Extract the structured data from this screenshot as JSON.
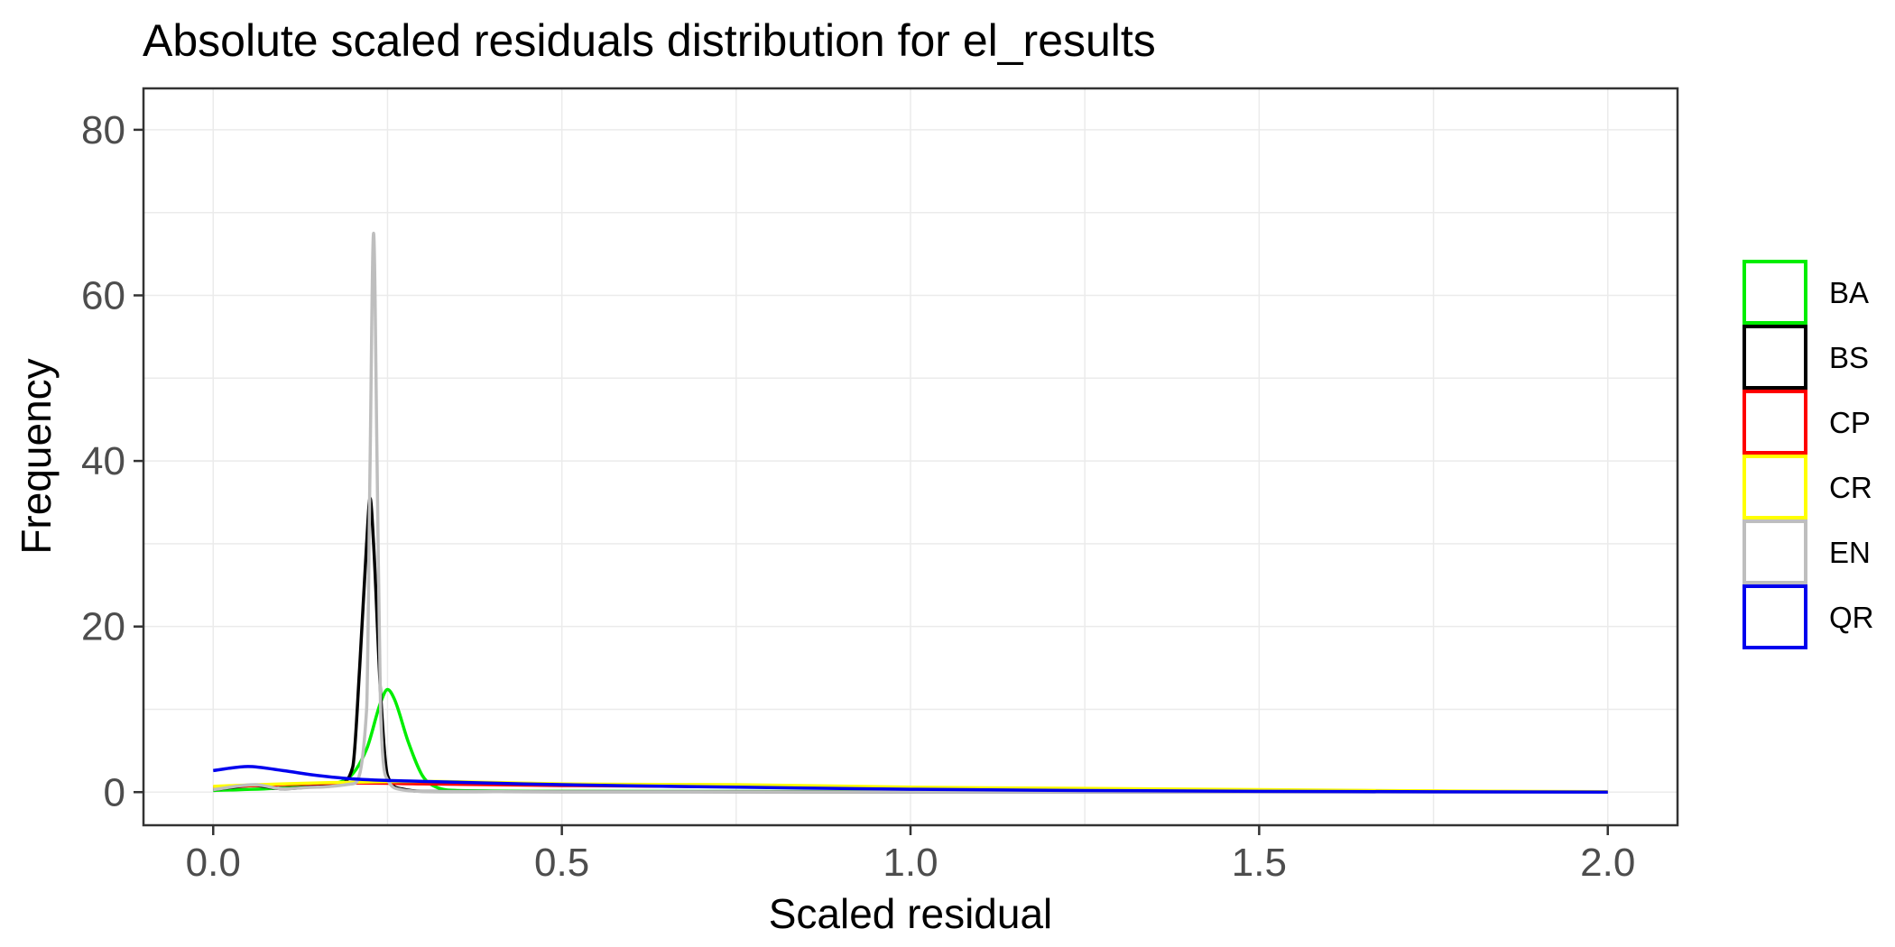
{
  "chart_data": {
    "type": "line",
    "title": "Absolute scaled residuals distribution for el_results",
    "xlabel": "Scaled residual",
    "ylabel": "Frequency",
    "xlim": [
      -0.1,
      2.1
    ],
    "ylim": [
      -4,
      85
    ],
    "xticks": [
      0.0,
      0.5,
      1.0,
      1.5,
      2.0
    ],
    "xtick_labels": [
      "0.0",
      "0.5",
      "1.0",
      "1.5",
      "2.0"
    ],
    "yticks": [
      0,
      20,
      40,
      60,
      80
    ],
    "ytick_labels": [
      "0",
      "20",
      "40",
      "60",
      "80"
    ],
    "grid": true,
    "legend_position": "right",
    "series": [
      {
        "name": "BA",
        "color": "#00ee00",
        "x": [
          0.0,
          0.1,
          0.15,
          0.19,
          0.22,
          0.24,
          0.25,
          0.26,
          0.28,
          0.3,
          0.32,
          0.35,
          0.5,
          1.0,
          1.5,
          2.0
        ],
        "y": [
          0.2,
          0.5,
          0.9,
          1.5,
          5.2,
          10.8,
          12.4,
          11.2,
          6.0,
          2.0,
          0.6,
          0.2,
          0.1,
          0.05,
          0.02,
          0.0
        ]
      },
      {
        "name": "BS",
        "color": "#000000",
        "x": [
          0.0,
          0.06,
          0.1,
          0.15,
          0.18,
          0.2,
          0.21,
          0.22,
          0.225,
          0.23,
          0.24,
          0.25,
          0.27,
          0.3,
          0.5,
          1.0,
          1.5,
          2.0
        ],
        "y": [
          0.3,
          0.8,
          0.4,
          0.7,
          1.0,
          3.0,
          15.0,
          30.0,
          35.5,
          30.0,
          12.0,
          2.0,
          0.4,
          0.1,
          0.05,
          0.02,
          0.01,
          0.0
        ]
      },
      {
        "name": "CP",
        "color": "#ff0000",
        "x": [
          0.0,
          0.1,
          0.2,
          0.3,
          0.5,
          1.0,
          1.5,
          2.0
        ],
        "y": [
          0.6,
          0.9,
          1.1,
          1.0,
          0.8,
          0.5,
          0.25,
          0.0
        ]
      },
      {
        "name": "CR",
        "color": "#ffff00",
        "x": [
          0.0,
          0.1,
          0.2,
          0.3,
          0.5,
          0.75,
          1.0,
          1.25,
          1.5,
          1.75,
          2.0
        ],
        "y": [
          0.7,
          1.0,
          1.2,
          1.3,
          1.0,
          0.9,
          0.6,
          0.45,
          0.3,
          0.15,
          0.05
        ]
      },
      {
        "name": "EN",
        "color": "#bebebe",
        "x": [
          0.0,
          0.06,
          0.1,
          0.15,
          0.2,
          0.22,
          0.225,
          0.23,
          0.235,
          0.24,
          0.25,
          0.27,
          0.3,
          0.5,
          1.0,
          1.5,
          2.0
        ],
        "y": [
          0.3,
          0.9,
          0.4,
          0.6,
          1.0,
          10.0,
          40.0,
          67.5,
          40.0,
          10.0,
          1.5,
          0.3,
          0.1,
          0.05,
          0.02,
          0.01,
          0.0
        ]
      },
      {
        "name": "QR",
        "color": "#0000ee",
        "x": [
          0.0,
          0.05,
          0.1,
          0.15,
          0.2,
          0.3,
          0.5,
          0.75,
          1.0,
          1.25,
          1.5,
          1.75,
          2.0
        ],
        "y": [
          2.6,
          3.1,
          2.6,
          2.0,
          1.6,
          1.3,
          0.9,
          0.6,
          0.35,
          0.2,
          0.1,
          0.05,
          0.0
        ]
      }
    ]
  }
}
